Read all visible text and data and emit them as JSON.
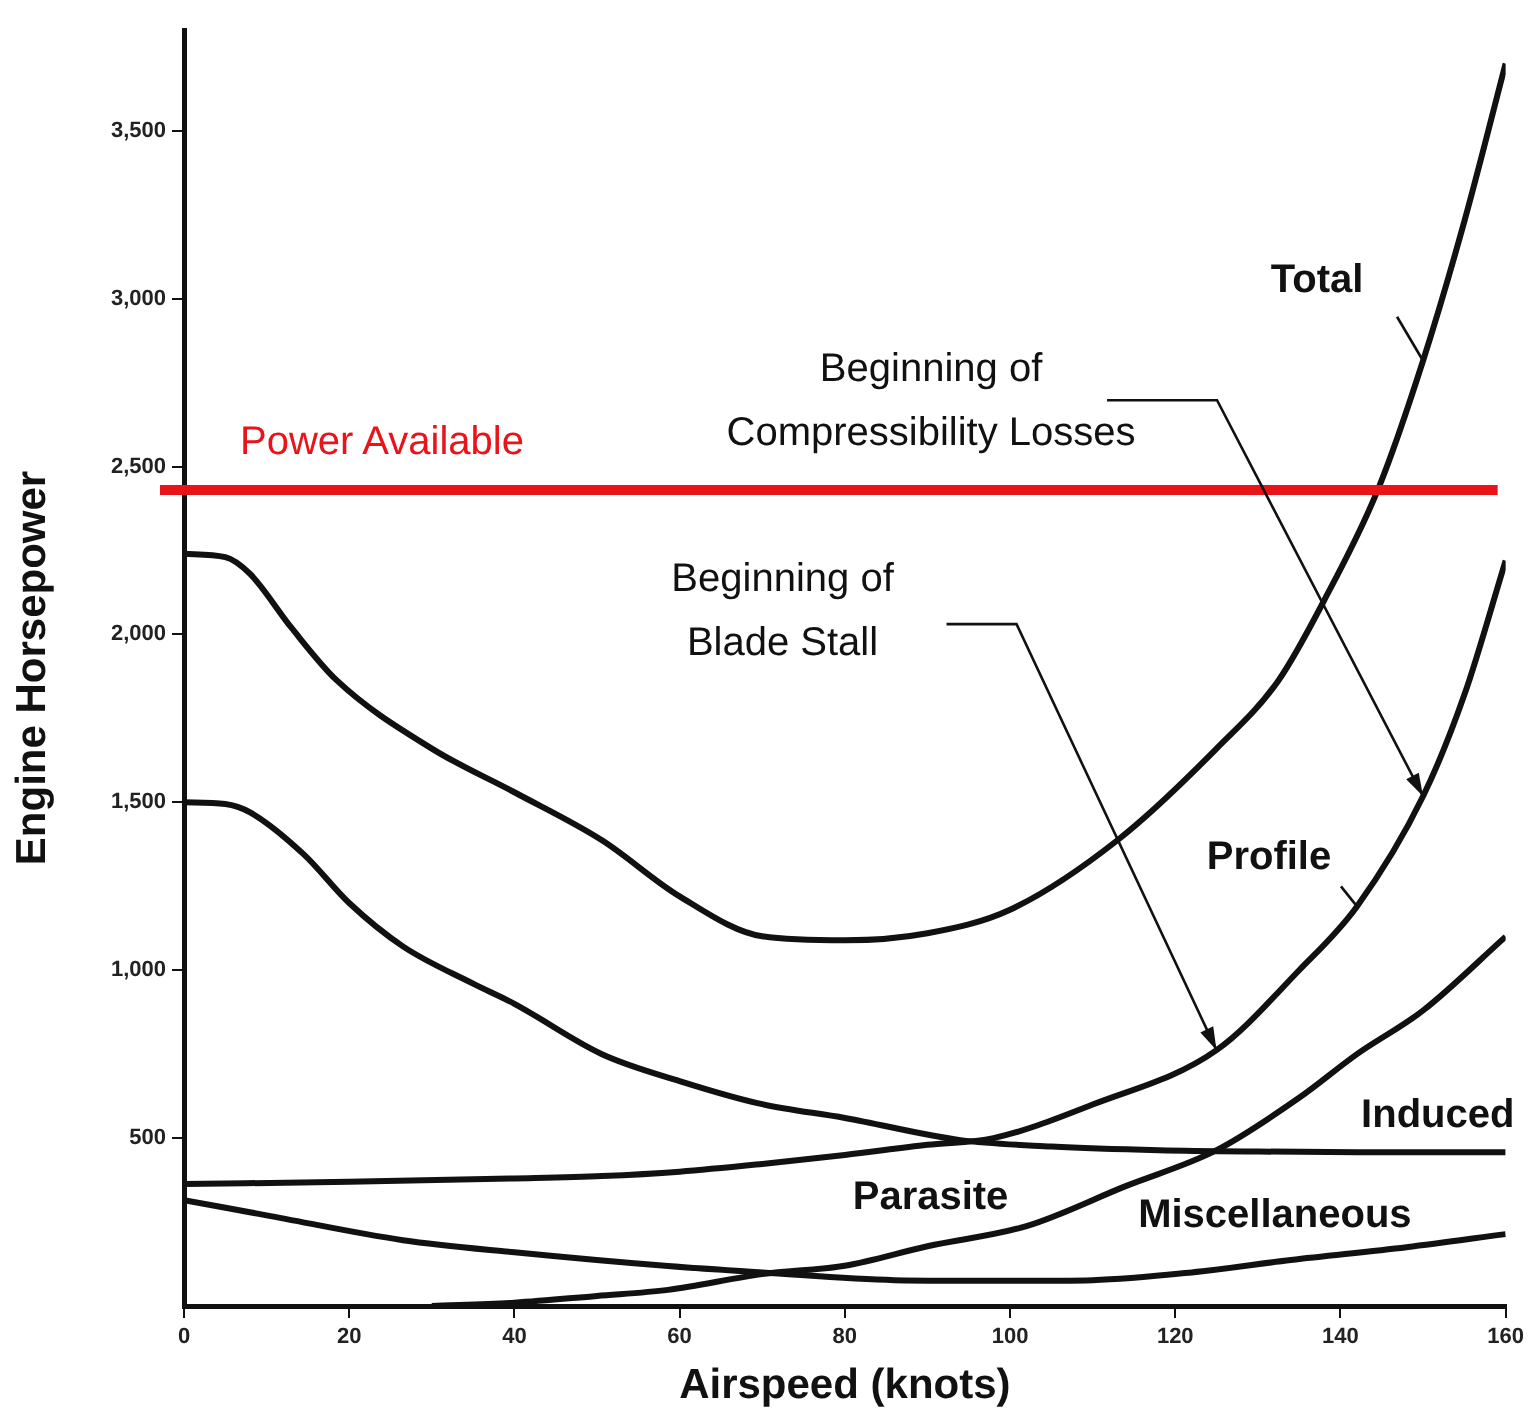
{
  "chart_data": {
    "type": "line",
    "xlabel": "Airspeed (knots)",
    "ylabel": "Engine Horsepower",
    "xlim": [
      0,
      160
    ],
    "xticks": [
      0,
      20,
      40,
      60,
      80,
      100,
      120,
      140,
      160
    ],
    "ylim": [
      0,
      3800
    ],
    "yticks": [
      500,
      {
        "value": 1000,
        "label": "1,000"
      },
      {
        "value": 1500,
        "label": "1,500"
      },
      {
        "value": 2000,
        "label": "2,000"
      },
      {
        "value": 2500,
        "label": "2,500"
      },
      {
        "value": 3000,
        "label": "3,000"
      },
      {
        "value": 3500,
        "label": "3,500"
      }
    ],
    "grid": false,
    "legend": false,
    "marker": "none",
    "line_style": "solid",
    "series": [
      {
        "name": "Total",
        "color": "#111111",
        "x": [
          0,
          5,
          8,
          13,
          18.5,
          30,
          40,
          50.6,
          60,
          70,
          80,
          90,
          100,
          113,
          125,
          132.5,
          138,
          144.6,
          150,
          155,
          160
        ],
        "values": [
          2240,
          2230,
          2180,
          2020,
          1863,
          1660,
          1530,
          1387,
          1220,
          1101,
          1089,
          1110,
          1180,
          1387,
          1660,
          1863,
          2100,
          2435,
          2815,
          3230,
          3700
        ]
      },
      {
        "name": "Profile",
        "color": "#111111",
        "x": [
          0,
          20,
          40,
          50.6,
          60,
          70,
          80,
          90,
          98,
          110,
          125,
          135,
          142,
          150,
          155,
          160
        ],
        "values": [
          363,
          370,
          380,
          387,
          400,
          423,
          450,
          480,
          500,
          600,
          762,
          1000,
          1190,
          1518,
          1820,
          2220
        ]
      },
      {
        "name": "Induced",
        "color": "#111111",
        "x": [
          0,
          5,
          8,
          14.5,
          20,
          26.5,
          35,
          40,
          50.6,
          60,
          70,
          80,
          94,
          105,
          118,
          130,
          145,
          160
        ],
        "values": [
          1500,
          1495,
          1470,
          1345,
          1200,
          1071,
          960,
          900,
          750,
          670,
          601,
          560,
          494,
          475,
          464,
          460,
          458,
          458
        ]
      },
      {
        "name": "Parasite",
        "color": "#111111",
        "x": [
          30,
          40,
          50,
          58.6,
          70,
          80,
          90,
          102,
          114,
          125,
          135,
          142,
          150,
          160
        ],
        "values": [
          0,
          10,
          30,
          48,
          95,
          120,
          178,
          238,
          357,
          464,
          620,
          750,
          880,
          1100
        ]
      },
      {
        "name": "Miscellaneous",
        "color": "#111111",
        "x": [
          0,
          10,
          26.5,
          40,
          58.6,
          70,
          86,
          100,
          110,
          122,
          134,
          148,
          160
        ],
        "values": [
          315,
          270,
          196,
          160,
          119,
          100,
          77,
          75,
          77,
          100,
          137,
          175,
          214
        ]
      }
    ],
    "ref_lines": [
      {
        "axis": "y",
        "value": 2430,
        "label": "Power Available",
        "color": "#e8141a"
      }
    ],
    "annotations": [
      {
        "text": "Beginning of\nCompressibility Losses",
        "x": 150,
        "y": 1518
      },
      "Beginning of\nBlade Stall"
    ]
  }
}
